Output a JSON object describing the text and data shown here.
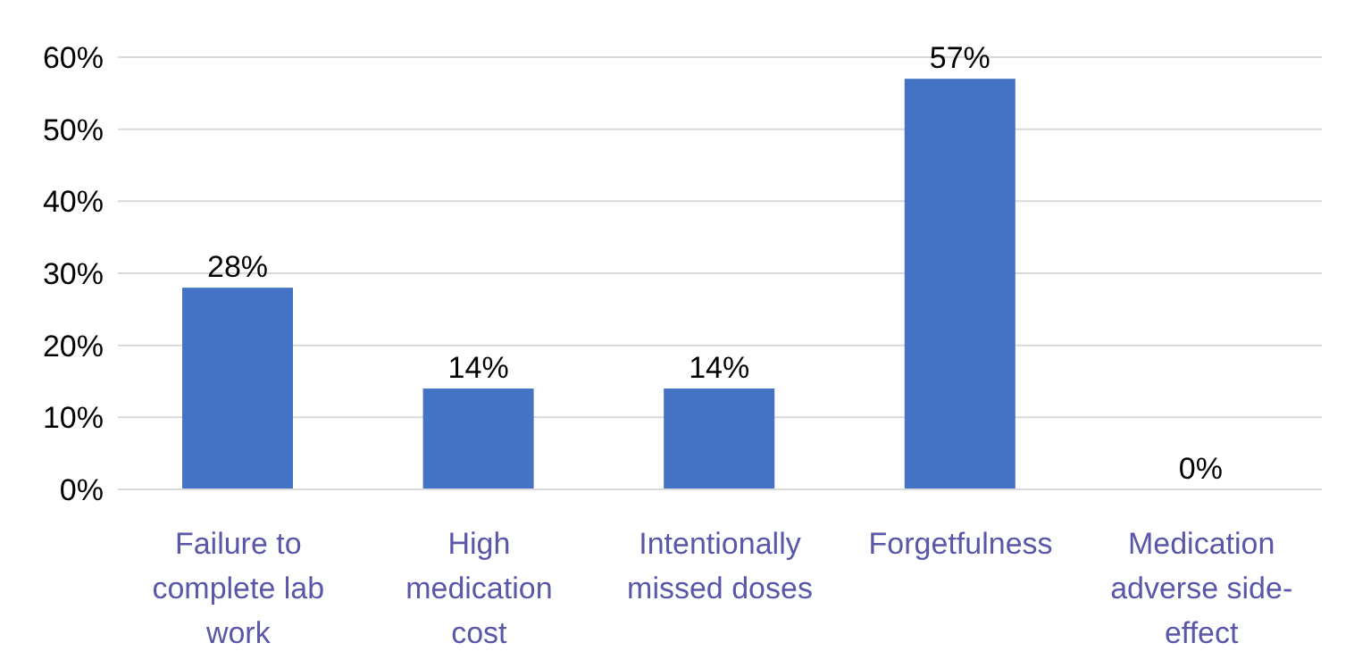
{
  "chart_data": {
    "type": "bar",
    "categories": [
      "Failure to complete lab work",
      "High medication cost",
      "Intentionally missed doses",
      "Forgetfulness",
      "Medication adverse side-effect"
    ],
    "values": [
      28,
      14,
      14,
      57,
      0
    ],
    "color": "#4472c4",
    "value_labels": [
      "28%",
      "14%",
      "14%",
      "57%",
      "0%"
    ],
    "ylim": [
      0,
      60
    ],
    "yticks": [
      {
        "value": 0,
        "label": "0%"
      },
      {
        "value": 10,
        "label": "10%"
      },
      {
        "value": 20,
        "label": "20%"
      },
      {
        "value": 30,
        "label": "30%"
      },
      {
        "value": 40,
        "label": "40%"
      },
      {
        "value": 50,
        "label": "50%"
      },
      {
        "value": 60,
        "label": "60%"
      }
    ],
    "grid": "y"
  }
}
